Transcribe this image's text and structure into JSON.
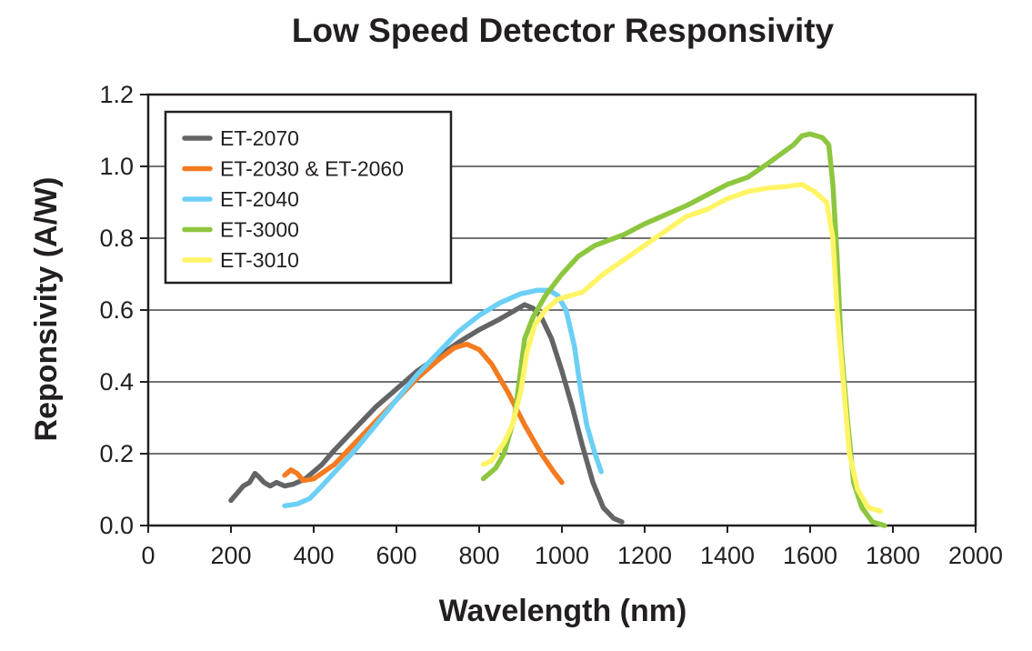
{
  "chart_data": {
    "type": "line",
    "title": "Low Speed Detector Responsivity",
    "xlabel": "Wavelength (nm)",
    "ylabel": "Reponsivity (A/W)",
    "xlim": [
      0,
      2000
    ],
    "ylim": [
      0,
      1.2
    ],
    "xticks": [
      "0",
      "200",
      "400",
      "600",
      "800",
      "1000",
      "1200",
      "1400",
      "1600",
      "1800",
      "2000"
    ],
    "yticks": [
      "0.0",
      "0.2",
      "0.4",
      "0.6",
      "0.8",
      "1.0",
      "1.2"
    ],
    "grid": "horizontal",
    "legend_position": "top-left",
    "series": [
      {
        "name": "ET-2070",
        "color": "#636466",
        "points": [
          [
            200,
            0.07
          ],
          [
            215,
            0.09
          ],
          [
            230,
            0.11
          ],
          [
            245,
            0.12
          ],
          [
            258,
            0.145
          ],
          [
            268,
            0.135
          ],
          [
            280,
            0.12
          ],
          [
            295,
            0.11
          ],
          [
            310,
            0.12
          ],
          [
            330,
            0.11
          ],
          [
            350,
            0.115
          ],
          [
            380,
            0.13
          ],
          [
            420,
            0.17
          ],
          [
            450,
            0.21
          ],
          [
            500,
            0.27
          ],
          [
            550,
            0.33
          ],
          [
            600,
            0.38
          ],
          [
            650,
            0.43
          ],
          [
            700,
            0.47
          ],
          [
            750,
            0.51
          ],
          [
            800,
            0.545
          ],
          [
            850,
            0.575
          ],
          [
            880,
            0.595
          ],
          [
            910,
            0.615
          ],
          [
            930,
            0.605
          ],
          [
            950,
            0.58
          ],
          [
            975,
            0.52
          ],
          [
            1000,
            0.43
          ],
          [
            1025,
            0.33
          ],
          [
            1050,
            0.22
          ],
          [
            1075,
            0.12
          ],
          [
            1100,
            0.05
          ],
          [
            1125,
            0.02
          ],
          [
            1145,
            0.01
          ]
        ]
      },
      {
        "name": "ET-2030 & ET-2060",
        "color": "#f47b20",
        "points": [
          [
            330,
            0.14
          ],
          [
            345,
            0.155
          ],
          [
            360,
            0.145
          ],
          [
            375,
            0.125
          ],
          [
            400,
            0.13
          ],
          [
            450,
            0.17
          ],
          [
            500,
            0.23
          ],
          [
            550,
            0.29
          ],
          [
            600,
            0.35
          ],
          [
            650,
            0.41
          ],
          [
            700,
            0.46
          ],
          [
            740,
            0.495
          ],
          [
            770,
            0.505
          ],
          [
            800,
            0.49
          ],
          [
            830,
            0.45
          ],
          [
            870,
            0.37
          ],
          [
            910,
            0.28
          ],
          [
            950,
            0.2
          ],
          [
            980,
            0.15
          ],
          [
            1000,
            0.12
          ]
        ]
      },
      {
        "name": "ET-2040",
        "color": "#6ccff6",
        "points": [
          [
            330,
            0.055
          ],
          [
            360,
            0.06
          ],
          [
            390,
            0.075
          ],
          [
            420,
            0.11
          ],
          [
            460,
            0.16
          ],
          [
            500,
            0.21
          ],
          [
            550,
            0.28
          ],
          [
            600,
            0.35
          ],
          [
            650,
            0.42
          ],
          [
            700,
            0.48
          ],
          [
            750,
            0.54
          ],
          [
            800,
            0.585
          ],
          [
            850,
            0.62
          ],
          [
            900,
            0.645
          ],
          [
            940,
            0.655
          ],
          [
            970,
            0.655
          ],
          [
            990,
            0.64
          ],
          [
            1010,
            0.6
          ],
          [
            1030,
            0.5
          ],
          [
            1045,
            0.38
          ],
          [
            1060,
            0.28
          ],
          [
            1080,
            0.2
          ],
          [
            1095,
            0.15
          ]
        ]
      },
      {
        "name": "ET-3000",
        "color": "#8dc63f",
        "points": [
          [
            810,
            0.13
          ],
          [
            840,
            0.16
          ],
          [
            860,
            0.2
          ],
          [
            885,
            0.3
          ],
          [
            900,
            0.43
          ],
          [
            910,
            0.52
          ],
          [
            930,
            0.58
          ],
          [
            960,
            0.64
          ],
          [
            1000,
            0.7
          ],
          [
            1040,
            0.75
          ],
          [
            1080,
            0.78
          ],
          [
            1150,
            0.81
          ],
          [
            1200,
            0.84
          ],
          [
            1300,
            0.89
          ],
          [
            1400,
            0.95
          ],
          [
            1450,
            0.97
          ],
          [
            1500,
            1.01
          ],
          [
            1560,
            1.06
          ],
          [
            1580,
            1.085
          ],
          [
            1600,
            1.09
          ],
          [
            1630,
            1.08
          ],
          [
            1645,
            1.06
          ],
          [
            1655,
            0.95
          ],
          [
            1665,
            0.75
          ],
          [
            1675,
            0.5
          ],
          [
            1690,
            0.3
          ],
          [
            1705,
            0.12
          ],
          [
            1725,
            0.05
          ],
          [
            1750,
            0.01
          ],
          [
            1780,
            0.0
          ]
        ]
      },
      {
        "name": "ET-3010",
        "color": "#fff466",
        "points": [
          [
            810,
            0.17
          ],
          [
            830,
            0.18
          ],
          [
            860,
            0.23
          ],
          [
            880,
            0.28
          ],
          [
            900,
            0.37
          ],
          [
            915,
            0.48
          ],
          [
            935,
            0.56
          ],
          [
            960,
            0.6
          ],
          [
            990,
            0.63
          ],
          [
            1020,
            0.64
          ],
          [
            1050,
            0.65
          ],
          [
            1100,
            0.7
          ],
          [
            1150,
            0.74
          ],
          [
            1200,
            0.78
          ],
          [
            1250,
            0.82
          ],
          [
            1300,
            0.86
          ],
          [
            1350,
            0.88
          ],
          [
            1400,
            0.91
          ],
          [
            1450,
            0.93
          ],
          [
            1500,
            0.94
          ],
          [
            1550,
            0.945
          ],
          [
            1580,
            0.95
          ],
          [
            1610,
            0.93
          ],
          [
            1640,
            0.9
          ],
          [
            1655,
            0.8
          ],
          [
            1665,
            0.6
          ],
          [
            1680,
            0.4
          ],
          [
            1695,
            0.2
          ],
          [
            1715,
            0.1
          ],
          [
            1740,
            0.05
          ],
          [
            1770,
            0.04
          ]
        ]
      }
    ]
  }
}
